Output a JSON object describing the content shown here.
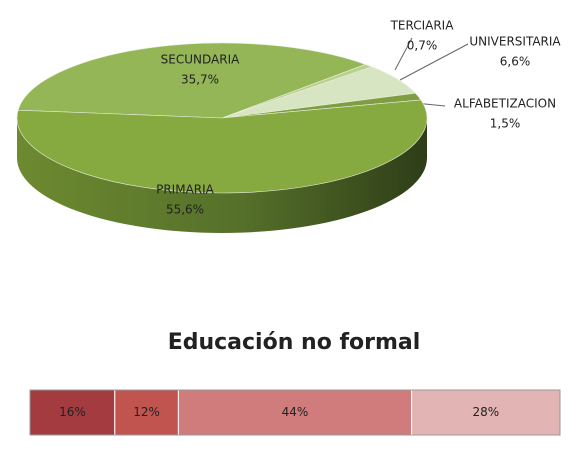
{
  "chart_data": [
    {
      "type": "pie",
      "categories": [
        "SECUNDARIA",
        "TERCIARIA",
        "UNIVERSITARIA",
        "ALFABETIZACION",
        "PRIMARIA"
      ],
      "values": [
        35.7,
        0.7,
        6.6,
        1.5,
        55.6
      ],
      "value_labels": [
        "35,7%",
        "0,7%",
        "6,6%",
        "1,5%",
        "55,6%"
      ],
      "colors": [
        "#94b656",
        "#b9d08c",
        "#d8e5c2",
        "#7f9e44",
        "#86a940"
      ]
    },
    {
      "type": "stacked-bar",
      "title": "Educación no formal",
      "values": [
        16,
        12,
        44,
        28
      ],
      "value_labels": [
        "16%",
        "12%",
        "44%",
        "28%"
      ],
      "colors": [
        "#a43b40",
        "#c25450",
        "#d07c7c",
        "#e2b4b4"
      ]
    }
  ]
}
